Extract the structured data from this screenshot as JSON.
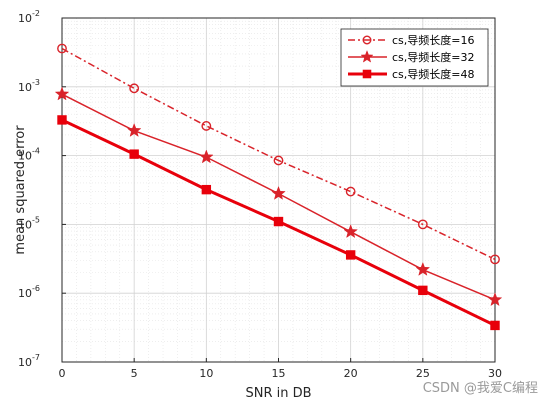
{
  "chart_data": {
    "type": "line",
    "title": "",
    "xlabel": "SNR in DB",
    "ylabel": "mean squared error",
    "xlim": [
      0,
      30
    ],
    "ylim": [
      1e-07,
      0.01
    ],
    "yscale": "log",
    "grid": true,
    "legend_position": "top-right",
    "x_ticks": [
      0,
      5,
      10,
      15,
      20,
      25,
      30
    ],
    "y_ticks": [
      {
        "value": 1e-07,
        "base": "10",
        "exp": "-7"
      },
      {
        "value": 1e-06,
        "base": "10",
        "exp": "-6"
      },
      {
        "value": 1e-05,
        "base": "10",
        "exp": "-5"
      },
      {
        "value": 0.0001,
        "base": "10",
        "exp": "-4"
      },
      {
        "value": 0.001,
        "base": "10",
        "exp": "-3"
      },
      {
        "value": 0.01,
        "base": "10",
        "exp": "-2"
      }
    ],
    "x": [
      0,
      5,
      10,
      15,
      20,
      25,
      30
    ],
    "series": [
      {
        "name": "cs,导频长度=16",
        "values": [
          0.0036,
          0.00095,
          0.00027,
          8.5e-05,
          3e-05,
          1e-05,
          3.1e-06
        ],
        "color": "#d9232a",
        "style": "dashdot",
        "marker": "circle"
      },
      {
        "name": "cs,导频长度=32",
        "values": [
          0.00078,
          0.00023,
          9.5e-05,
          2.8e-05,
          7.8e-06,
          2.2e-06,
          8e-07
        ],
        "color": "#d9232a",
        "style": "solid",
        "marker": "star"
      },
      {
        "name": "cs,导频长度=48",
        "values": [
          0.00033,
          0.000105,
          3.2e-05,
          1.1e-05,
          3.6e-06,
          1.1e-06,
          3.4e-07
        ],
        "color": "#e8000b",
        "style": "solid-thick",
        "marker": "square"
      }
    ]
  },
  "watermark": "CSDN @我爱C编程"
}
